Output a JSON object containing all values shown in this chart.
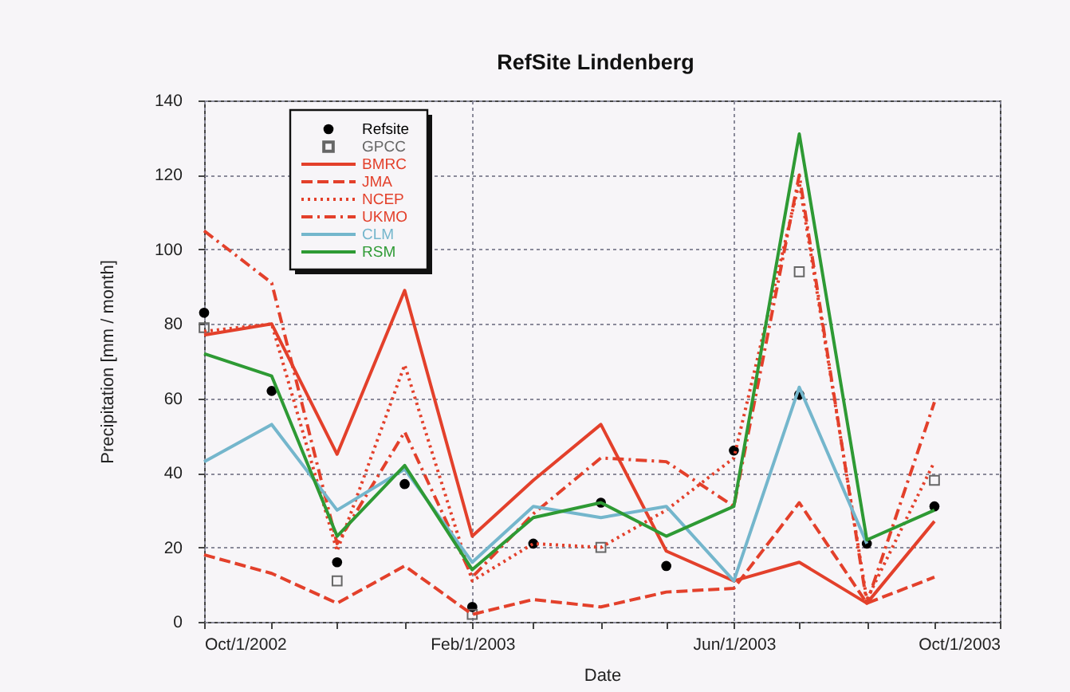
{
  "chart_data": {
    "type": "line",
    "title": "RefSite Lindenberg",
    "xlabel": "Date",
    "ylabel": "Precipitation [mm / month]",
    "x": [
      "2002-10-01",
      "2002-11-01",
      "2002-12-01",
      "2003-01-01",
      "2003-02-01",
      "2003-03-01",
      "2003-04-01",
      "2003-05-01",
      "2003-06-01",
      "2003-07-01",
      "2003-08-01",
      "2003-09-01"
    ],
    "xlim": [
      "2002-10-01",
      "2003-10-01"
    ],
    "xticks": [
      {
        "value": "2002-10-01",
        "label": "Oct/1/2002"
      },
      {
        "value": "2002-11-01",
        "label": null
      },
      {
        "value": "2002-12-01",
        "label": null
      },
      {
        "value": "2003-01-01",
        "label": null
      },
      {
        "value": "2003-02-01",
        "label": "Feb/1/2003"
      },
      {
        "value": "2003-03-01",
        "label": null
      },
      {
        "value": "2003-04-01",
        "label": null
      },
      {
        "value": "2003-05-01",
        "label": null
      },
      {
        "value": "2003-06-01",
        "label": "Jun/1/2003"
      },
      {
        "value": "2003-07-01",
        "label": null
      },
      {
        "value": "2003-08-01",
        "label": null
      },
      {
        "value": "2003-09-01",
        "label": null
      },
      {
        "value": "2003-10-01",
        "label": "Oct/1/2003"
      }
    ],
    "ylim": [
      0,
      140
    ],
    "yticks": [
      0,
      20,
      40,
      60,
      80,
      100,
      120,
      140
    ],
    "grid": true,
    "legend": "top left",
    "series": [
      {
        "name": "Refsite",
        "type": "scatter",
        "marker": "circle",
        "color": "#000000",
        "values": [
          83,
          62,
          16,
          37,
          4,
          21,
          32,
          15,
          46,
          61,
          21,
          31
        ]
      },
      {
        "name": "GPCC",
        "type": "scatter",
        "marker": "square",
        "color": "#666666",
        "values": [
          79,
          null,
          11,
          null,
          2,
          null,
          20,
          null,
          null,
          94,
          null,
          38
        ]
      },
      {
        "name": "BMRC",
        "color": "#e3402b",
        "line_style": "solid",
        "values": [
          77,
          80,
          45,
          89,
          23,
          38,
          53,
          19,
          11,
          16,
          5,
          27
        ]
      },
      {
        "name": "JMA",
        "color": "#e3402b",
        "line_style": "dashed",
        "values": [
          18,
          13,
          5,
          15,
          2,
          6,
          4,
          8,
          9,
          32,
          5,
          12
        ]
      },
      {
        "name": "NCEP",
        "color": "#e3402b",
        "line_style": "dotted",
        "values": [
          78,
          80,
          19,
          69,
          11,
          21,
          20,
          30,
          44,
          118,
          6,
          43
        ]
      },
      {
        "name": "UKMO",
        "color": "#e3402b",
        "line_style": "dashdot",
        "values": [
          105,
          91,
          21,
          51,
          12,
          29,
          44,
          43,
          31,
          120,
          5,
          59
        ]
      },
      {
        "name": "CLM",
        "color": "#74b6cc",
        "line_style": "solid",
        "values": [
          43,
          53,
          30,
          41,
          16,
          31,
          28,
          31,
          11,
          63,
          21,
          null
        ]
      },
      {
        "name": "RSM",
        "color": "#2e9a34",
        "line_style": "solid",
        "values": [
          72,
          66,
          23,
          42,
          14,
          28,
          32,
          23,
          31,
          131,
          22,
          30
        ]
      }
    ]
  }
}
